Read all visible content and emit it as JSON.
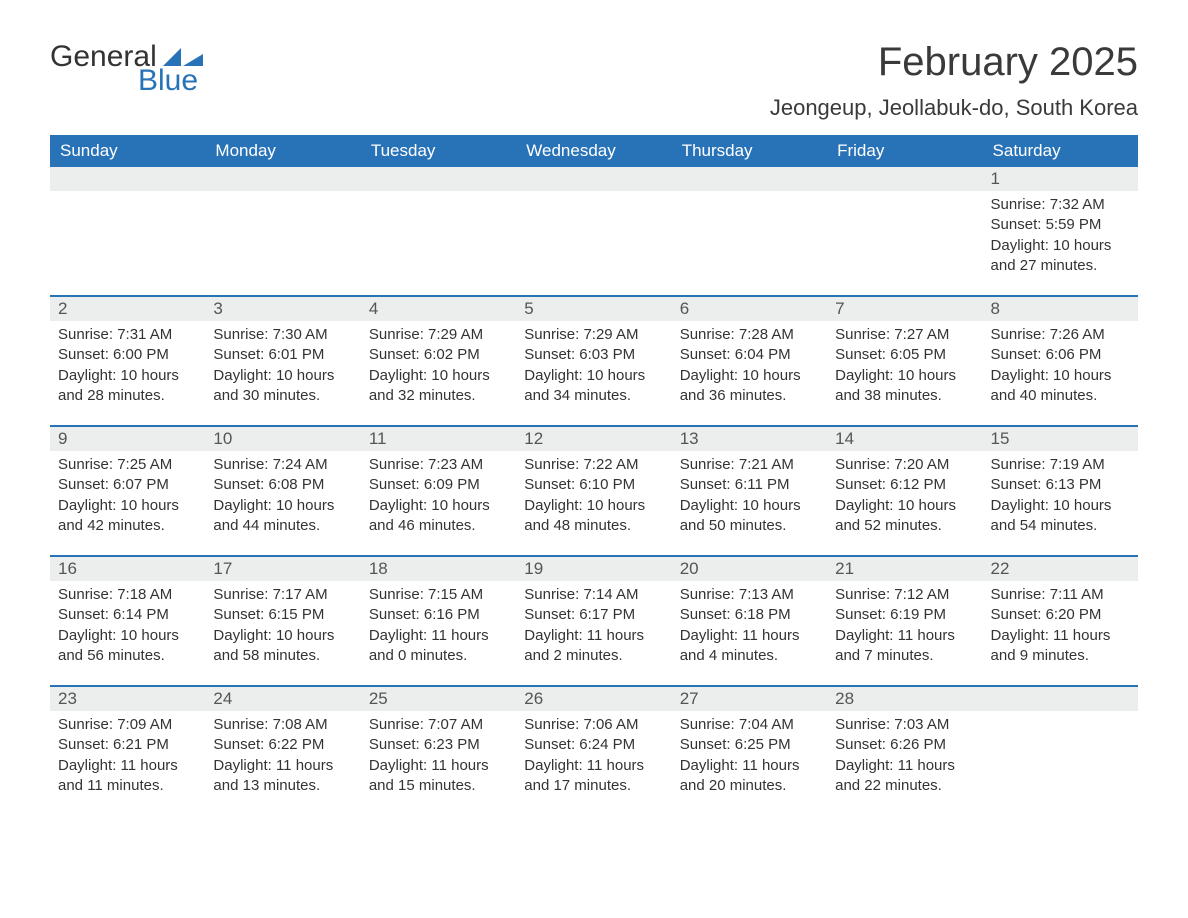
{
  "logo": {
    "text1": "General",
    "text2": "Blue",
    "icon_color": "#2873b8"
  },
  "title": "February 2025",
  "location": "Jeongeup, Jeollabuk-do, South Korea",
  "colors": {
    "header_bg": "#2873b8",
    "header_text": "#ffffff",
    "daynum_bg": "#eceded",
    "text": "#333333",
    "page_bg": "#ffffff"
  },
  "weekdays": [
    "Sunday",
    "Monday",
    "Tuesday",
    "Wednesday",
    "Thursday",
    "Friday",
    "Saturday"
  ],
  "weeks": [
    [
      null,
      null,
      null,
      null,
      null,
      null,
      {
        "n": "1",
        "sunrise": "7:32 AM",
        "sunset": "5:59 PM",
        "daylight": "10 hours and 27 minutes."
      }
    ],
    [
      {
        "n": "2",
        "sunrise": "7:31 AM",
        "sunset": "6:00 PM",
        "daylight": "10 hours and 28 minutes."
      },
      {
        "n": "3",
        "sunrise": "7:30 AM",
        "sunset": "6:01 PM",
        "daylight": "10 hours and 30 minutes."
      },
      {
        "n": "4",
        "sunrise": "7:29 AM",
        "sunset": "6:02 PM",
        "daylight": "10 hours and 32 minutes."
      },
      {
        "n": "5",
        "sunrise": "7:29 AM",
        "sunset": "6:03 PM",
        "daylight": "10 hours and 34 minutes."
      },
      {
        "n": "6",
        "sunrise": "7:28 AM",
        "sunset": "6:04 PM",
        "daylight": "10 hours and 36 minutes."
      },
      {
        "n": "7",
        "sunrise": "7:27 AM",
        "sunset": "6:05 PM",
        "daylight": "10 hours and 38 minutes."
      },
      {
        "n": "8",
        "sunrise": "7:26 AM",
        "sunset": "6:06 PM",
        "daylight": "10 hours and 40 minutes."
      }
    ],
    [
      {
        "n": "9",
        "sunrise": "7:25 AM",
        "sunset": "6:07 PM",
        "daylight": "10 hours and 42 minutes."
      },
      {
        "n": "10",
        "sunrise": "7:24 AM",
        "sunset": "6:08 PM",
        "daylight": "10 hours and 44 minutes."
      },
      {
        "n": "11",
        "sunrise": "7:23 AM",
        "sunset": "6:09 PM",
        "daylight": "10 hours and 46 minutes."
      },
      {
        "n": "12",
        "sunrise": "7:22 AM",
        "sunset": "6:10 PM",
        "daylight": "10 hours and 48 minutes."
      },
      {
        "n": "13",
        "sunrise": "7:21 AM",
        "sunset": "6:11 PM",
        "daylight": "10 hours and 50 minutes."
      },
      {
        "n": "14",
        "sunrise": "7:20 AM",
        "sunset": "6:12 PM",
        "daylight": "10 hours and 52 minutes."
      },
      {
        "n": "15",
        "sunrise": "7:19 AM",
        "sunset": "6:13 PM",
        "daylight": "10 hours and 54 minutes."
      }
    ],
    [
      {
        "n": "16",
        "sunrise": "7:18 AM",
        "sunset": "6:14 PM",
        "daylight": "10 hours and 56 minutes."
      },
      {
        "n": "17",
        "sunrise": "7:17 AM",
        "sunset": "6:15 PM",
        "daylight": "10 hours and 58 minutes."
      },
      {
        "n": "18",
        "sunrise": "7:15 AM",
        "sunset": "6:16 PM",
        "daylight": "11 hours and 0 minutes."
      },
      {
        "n": "19",
        "sunrise": "7:14 AM",
        "sunset": "6:17 PM",
        "daylight": "11 hours and 2 minutes."
      },
      {
        "n": "20",
        "sunrise": "7:13 AM",
        "sunset": "6:18 PM",
        "daylight": "11 hours and 4 minutes."
      },
      {
        "n": "21",
        "sunrise": "7:12 AM",
        "sunset": "6:19 PM",
        "daylight": "11 hours and 7 minutes."
      },
      {
        "n": "22",
        "sunrise": "7:11 AM",
        "sunset": "6:20 PM",
        "daylight": "11 hours and 9 minutes."
      }
    ],
    [
      {
        "n": "23",
        "sunrise": "7:09 AM",
        "sunset": "6:21 PM",
        "daylight": "11 hours and 11 minutes."
      },
      {
        "n": "24",
        "sunrise": "7:08 AM",
        "sunset": "6:22 PM",
        "daylight": "11 hours and 13 minutes."
      },
      {
        "n": "25",
        "sunrise": "7:07 AM",
        "sunset": "6:23 PM",
        "daylight": "11 hours and 15 minutes."
      },
      {
        "n": "26",
        "sunrise": "7:06 AM",
        "sunset": "6:24 PM",
        "daylight": "11 hours and 17 minutes."
      },
      {
        "n": "27",
        "sunrise": "7:04 AM",
        "sunset": "6:25 PM",
        "daylight": "11 hours and 20 minutes."
      },
      {
        "n": "28",
        "sunrise": "7:03 AM",
        "sunset": "6:26 PM",
        "daylight": "11 hours and 22 minutes."
      },
      null
    ]
  ],
  "labels": {
    "sunrise": "Sunrise: ",
    "sunset": "Sunset: ",
    "daylight": "Daylight: "
  }
}
